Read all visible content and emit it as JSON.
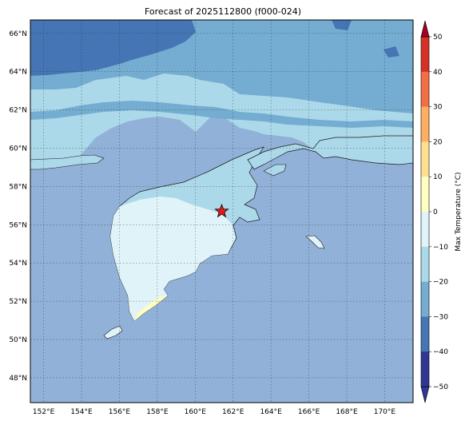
{
  "title": "Forecast of 2025112800 (f000-024)",
  "map": {
    "lat_ticks": [
      "66°N",
      "64°N",
      "62°N",
      "60°N",
      "58°N",
      "56°N",
      "54°N",
      "52°N",
      "50°N",
      "48°N"
    ],
    "lon_ticks": [
      "152°E",
      "154°E",
      "156°E",
      "158°E",
      "160°E",
      "162°E",
      "164°E",
      "166°E",
      "168°E",
      "170°E"
    ],
    "extent": {
      "lon_min": 151.3,
      "lon_max": 171.5,
      "lat_min": 46.7,
      "lat_max": 66.7
    },
    "marker": {
      "symbol": "star",
      "lon": 161.4,
      "lat": 56.7,
      "color": "#e31a1c"
    },
    "ocean_color": "#92b1d8",
    "land_colors": {
      "lt_minus40": "#4575b4",
      "minus30_to_minus20": "#74add1",
      "minus20_to_minus10": "#abd9e9",
      "minus10_to_0": "#e0f3f8",
      "0_to_10": "#ffffbf"
    }
  },
  "colorbar": {
    "label": "Max Temperature (°C)",
    "ticks": [
      "50",
      "40",
      "30",
      "20",
      "10",
      "0",
      "−10",
      "−20",
      "−30",
      "−40",
      "−50"
    ],
    "colors": [
      "#a50026",
      "#d73027",
      "#f46d43",
      "#fdae61",
      "#fee090",
      "#ffffbf",
      "#e0f3f8",
      "#abd9e9",
      "#74add1",
      "#4575b4",
      "#313695"
    ],
    "extend": "both"
  }
}
